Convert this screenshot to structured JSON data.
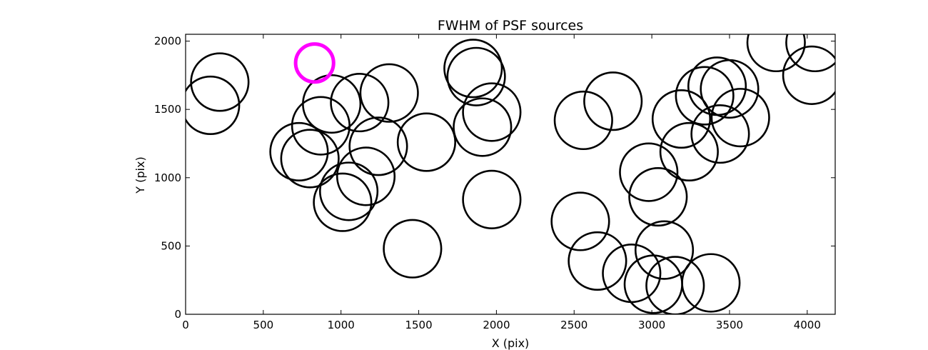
{
  "chart_data": {
    "type": "scatter",
    "title": "FWHM of PSF sources",
    "xlabel": "X (pix)",
    "ylabel": "Y (pix)",
    "xlim": [
      0,
      4180
    ],
    "ylim": [
      0,
      2050
    ],
    "xticks": [
      0,
      500,
      1000,
      1500,
      2000,
      2500,
      3000,
      3500,
      4000
    ],
    "yticks": [
      0,
      500,
      1000,
      1500,
      2000
    ],
    "grid": false,
    "marker": "circle",
    "marker_radius_x_units": 185,
    "colors": {
      "default": "#000000",
      "highlight": "#ff00ff"
    },
    "highlight": {
      "x": 830,
      "y": 1840
    },
    "points": [
      {
        "x": 160,
        "y": 1530
      },
      {
        "x": 220,
        "y": 1700
      },
      {
        "x": 730,
        "y": 1190
      },
      {
        "x": 800,
        "y": 1140
      },
      {
        "x": 870,
        "y": 1380
      },
      {
        "x": 940,
        "y": 1540
      },
      {
        "x": 1010,
        "y": 820
      },
      {
        "x": 1050,
        "y": 900
      },
      {
        "x": 1120,
        "y": 1550
      },
      {
        "x": 1160,
        "y": 1010
      },
      {
        "x": 1240,
        "y": 1230
      },
      {
        "x": 1310,
        "y": 1620
      },
      {
        "x": 1460,
        "y": 480
      },
      {
        "x": 1550,
        "y": 1260
      },
      {
        "x": 1850,
        "y": 1800
      },
      {
        "x": 1870,
        "y": 1740
      },
      {
        "x": 1910,
        "y": 1370
      },
      {
        "x": 1970,
        "y": 1480
      },
      {
        "x": 1970,
        "y": 840
      },
      {
        "x": 2540,
        "y": 680
      },
      {
        "x": 2560,
        "y": 1420
      },
      {
        "x": 2650,
        "y": 390
      },
      {
        "x": 2750,
        "y": 1560
      },
      {
        "x": 2870,
        "y": 300
      },
      {
        "x": 2980,
        "y": 1040
      },
      {
        "x": 3010,
        "y": 220
      },
      {
        "x": 3040,
        "y": 860
      },
      {
        "x": 3080,
        "y": 470
      },
      {
        "x": 3150,
        "y": 210
      },
      {
        "x": 3190,
        "y": 1430
      },
      {
        "x": 3240,
        "y": 1190
      },
      {
        "x": 3340,
        "y": 1600
      },
      {
        "x": 3380,
        "y": 230
      },
      {
        "x": 3420,
        "y": 1670
      },
      {
        "x": 3440,
        "y": 1320
      },
      {
        "x": 3500,
        "y": 1650
      },
      {
        "x": 3570,
        "y": 1440
      },
      {
        "x": 3800,
        "y": 1990
      },
      {
        "x": 4030,
        "y": 1750
      },
      {
        "x": 4050,
        "y": 1990
      }
    ]
  }
}
